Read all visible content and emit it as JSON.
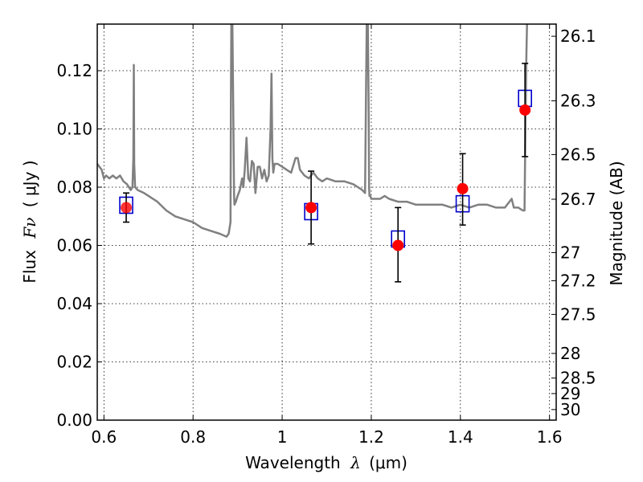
{
  "chart_data": {
    "type": "scatter",
    "xlabel_text": "Wavelength",
    "xlabel_symbol": "λ",
    "xlabel_unit": "(μm)",
    "ylabel_text": "Flux",
    "ylabel_symbol": "Fν",
    "ylabel_unit": "( μJy )",
    "y2label": "Magnitude (AB)",
    "xlim": [
      0.585,
      1.615
    ],
    "ylim": [
      0,
      0.136
    ],
    "x_ticks": [
      0.6,
      0.8,
      1.0,
      1.2,
      1.4,
      1.6
    ],
    "x_tick_labels": [
      "0.6",
      "0.8",
      "1",
      "1.2",
      "1.4",
      "1.6"
    ],
    "y_ticks": [
      0.0,
      0.02,
      0.04,
      0.06,
      0.08,
      0.1,
      0.12
    ],
    "y_tick_labels": [
      "0.00",
      "0.02",
      "0.04",
      "0.06",
      "0.08",
      "0.10",
      "0.12"
    ],
    "y2_ticks": [
      {
        "label": "26.1",
        "mag": 26.1
      },
      {
        "label": "26.3",
        "mag": 26.3
      },
      {
        "label": "26.5",
        "mag": 26.5
      },
      {
        "label": "26.7",
        "mag": 26.7
      },
      {
        "label": "27",
        "mag": 27.0
      },
      {
        "label": "27.2",
        "mag": 27.2
      },
      {
        "label": "27.5",
        "mag": 27.5
      },
      {
        "label": "28",
        "mag": 28.0
      },
      {
        "label": "28.5",
        "mag": 28.5
      },
      {
        "label": "29",
        "mag": 29.0
      },
      {
        "label": "30",
        "mag": 30.0
      }
    ],
    "grid": true,
    "colors": {
      "model": "#808080",
      "observed": "#ff0000",
      "model_photometry": "#0000cc",
      "errorbar": "#000000"
    },
    "observed_points": [
      {
        "x": 0.65,
        "y": 0.073,
        "yerr_low": 0.005,
        "yerr_high": 0.005
      },
      {
        "x": 1.065,
        "y": 0.073,
        "yerr_low": 0.0125,
        "yerr_high": 0.0125
      },
      {
        "x": 1.26,
        "y": 0.06,
        "yerr_low": 0.0125,
        "yerr_high": 0.013
      },
      {
        "x": 1.405,
        "y": 0.0795,
        "yerr_low": 0.0125,
        "yerr_high": 0.012
      },
      {
        "x": 1.545,
        "y": 0.1065,
        "yerr_low": 0.016,
        "yerr_high": 0.016
      }
    ],
    "model_photometry": [
      {
        "x": 0.65,
        "y": 0.0738
      },
      {
        "x": 1.065,
        "y": 0.0716
      },
      {
        "x": 1.26,
        "y": 0.0622
      },
      {
        "x": 1.405,
        "y": 0.0743
      },
      {
        "x": 1.545,
        "y": 0.1105
      }
    ],
    "model_spectrum": {
      "x": [
        0.585,
        0.595,
        0.6,
        0.605,
        0.612,
        0.62,
        0.628,
        0.636,
        0.644,
        0.652,
        0.66,
        0.664,
        0.666,
        0.667,
        0.668,
        0.67,
        0.676,
        0.69,
        0.7,
        0.72,
        0.74,
        0.76,
        0.78,
        0.8,
        0.82,
        0.84,
        0.86,
        0.875,
        0.88,
        0.884,
        0.885,
        0.886,
        0.888,
        0.89,
        0.892,
        0.893,
        0.896,
        0.9,
        0.905,
        0.91,
        0.913,
        0.916,
        0.92,
        0.924,
        0.928,
        0.932,
        0.936,
        0.94,
        0.945,
        0.95,
        0.955,
        0.96,
        0.965,
        0.97,
        0.974,
        0.976,
        0.978,
        0.98,
        0.983,
        0.99,
        1.0,
        1.01,
        1.02,
        1.03,
        1.035,
        1.04,
        1.045,
        1.05,
        1.06,
        1.07,
        1.08,
        1.09,
        1.1,
        1.12,
        1.14,
        1.16,
        1.17,
        1.18,
        1.186,
        1.188,
        1.19,
        1.192,
        1.194,
        1.195,
        1.196,
        1.198,
        1.2,
        1.21,
        1.22,
        1.23,
        1.24,
        1.26,
        1.28,
        1.3,
        1.32,
        1.34,
        1.36,
        1.38,
        1.4,
        1.42,
        1.44,
        1.46,
        1.48,
        1.5,
        1.51,
        1.515,
        1.52,
        1.53,
        1.54,
        1.544,
        1.546,
        1.548,
        1.55,
        1.552
      ],
      "y": [
        0.088,
        0.086,
        0.083,
        0.084,
        0.083,
        0.084,
        0.083,
        0.084,
        0.082,
        0.081,
        0.079,
        0.08,
        0.09,
        0.122,
        0.088,
        0.08,
        0.079,
        0.078,
        0.077,
        0.075,
        0.072,
        0.07,
        0.069,
        0.068,
        0.066,
        0.065,
        0.064,
        0.063,
        0.064,
        0.068,
        0.11,
        0.14,
        0.14,
        0.11,
        0.078,
        0.074,
        0.075,
        0.077,
        0.079,
        0.083,
        0.08,
        0.086,
        0.097,
        0.083,
        0.082,
        0.089,
        0.088,
        0.078,
        0.087,
        0.087,
        0.083,
        0.086,
        0.082,
        0.084,
        0.1,
        0.119,
        0.09,
        0.085,
        0.088,
        0.088,
        0.087,
        0.086,
        0.085,
        0.09,
        0.09,
        0.086,
        0.085,
        0.084,
        0.083,
        0.085,
        0.083,
        0.082,
        0.083,
        0.082,
        0.082,
        0.081,
        0.08,
        0.079,
        0.078,
        0.11,
        0.14,
        0.14,
        0.11,
        0.08,
        0.077,
        0.077,
        0.076,
        0.076,
        0.076,
        0.077,
        0.076,
        0.075,
        0.075,
        0.074,
        0.074,
        0.074,
        0.074,
        0.073,
        0.074,
        0.073,
        0.074,
        0.074,
        0.073,
        0.073,
        0.075,
        0.076,
        0.073,
        0.073,
        0.072,
        0.072,
        0.1,
        0.125,
        0.14,
        0.14
      ]
    }
  }
}
